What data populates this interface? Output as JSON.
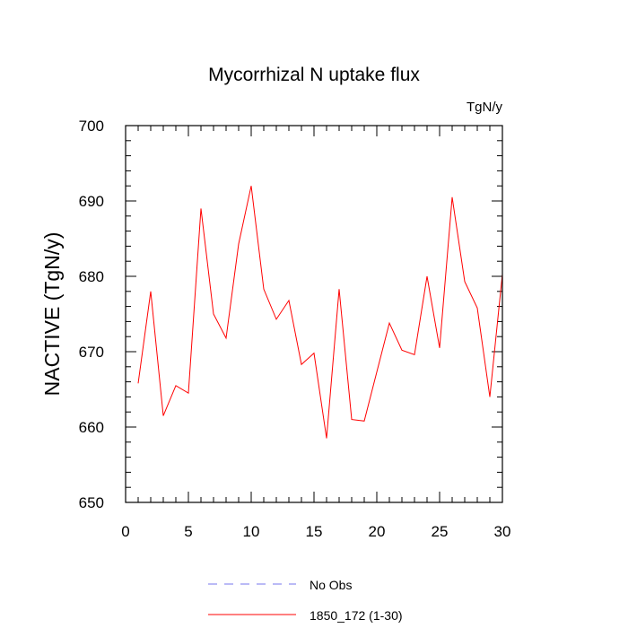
{
  "chart_data": {
    "type": "line",
    "title": "Mycorrhizal N uptake flux",
    "units": "TgN/y",
    "ylabel": "NACTIVE  (TgN/y)",
    "xlabel": "",
    "xlim": [
      0,
      30
    ],
    "ylim": [
      650,
      700
    ],
    "xticks": [
      0,
      5,
      10,
      15,
      20,
      25,
      30
    ],
    "yticks": [
      650,
      660,
      670,
      680,
      690,
      700
    ],
    "grid": false,
    "legend_placement": "bottom",
    "x": [
      1,
      2,
      3,
      4,
      5,
      6,
      7,
      8,
      9,
      10,
      11,
      12,
      13,
      14,
      15,
      16,
      17,
      18,
      19,
      20,
      21,
      22,
      23,
      24,
      25,
      26,
      27,
      28,
      29,
      30
    ],
    "series": [
      {
        "name": "1850_172 (1-30)",
        "color": "#ff0000",
        "style": "solid",
        "values": [
          665.8,
          678.0,
          661.5,
          665.5,
          664.5,
          689.0,
          675.0,
          671.8,
          684.3,
          692.0,
          678.3,
          674.3,
          676.8,
          668.3,
          669.8,
          658.5,
          678.3,
          661.0,
          660.8,
          667.3,
          673.8,
          670.2,
          669.6,
          680.0,
          670.5,
          690.5,
          679.3,
          675.8,
          664.0,
          680.3
        ]
      }
    ],
    "legend": [
      {
        "label": "No Obs",
        "color": "#7777ee",
        "style": "dashed"
      },
      {
        "label": "1850_172 (1-30)",
        "color": "#ff0000",
        "style": "solid"
      }
    ]
  }
}
